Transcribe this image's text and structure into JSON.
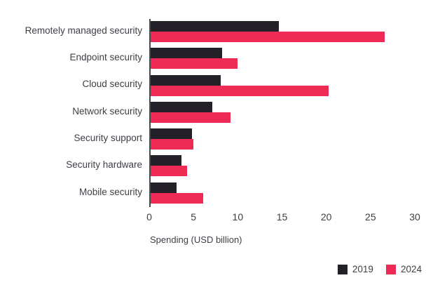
{
  "chart_data": {
    "type": "bar",
    "orientation": "horizontal",
    "title": "",
    "xlabel": "Spending (USD billion)",
    "ylabel": "",
    "categories": [
      "Remotely managed security",
      "Endpoint security",
      "Cloud security",
      "Network security",
      "Security support",
      "Security hardware",
      "Mobile security"
    ],
    "series": [
      {
        "name": "2019",
        "color": "#232127",
        "values": [
          14.5,
          8.1,
          7.9,
          7.0,
          4.7,
          3.5,
          2.9
        ]
      },
      {
        "name": "2024",
        "color": "#ed2b55",
        "values": [
          26.4,
          9.8,
          20.1,
          9.0,
          4.8,
          4.1,
          5.9
        ]
      }
    ],
    "xticks": [
      0,
      5,
      10,
      15,
      20,
      25,
      30
    ],
    "xlim": [
      0,
      30
    ],
    "grid": false,
    "legend_position": "bottom-right"
  },
  "colors": {
    "background": "#ffffff",
    "axis_line": "#4a4a4e",
    "text": "#3f3e46"
  }
}
